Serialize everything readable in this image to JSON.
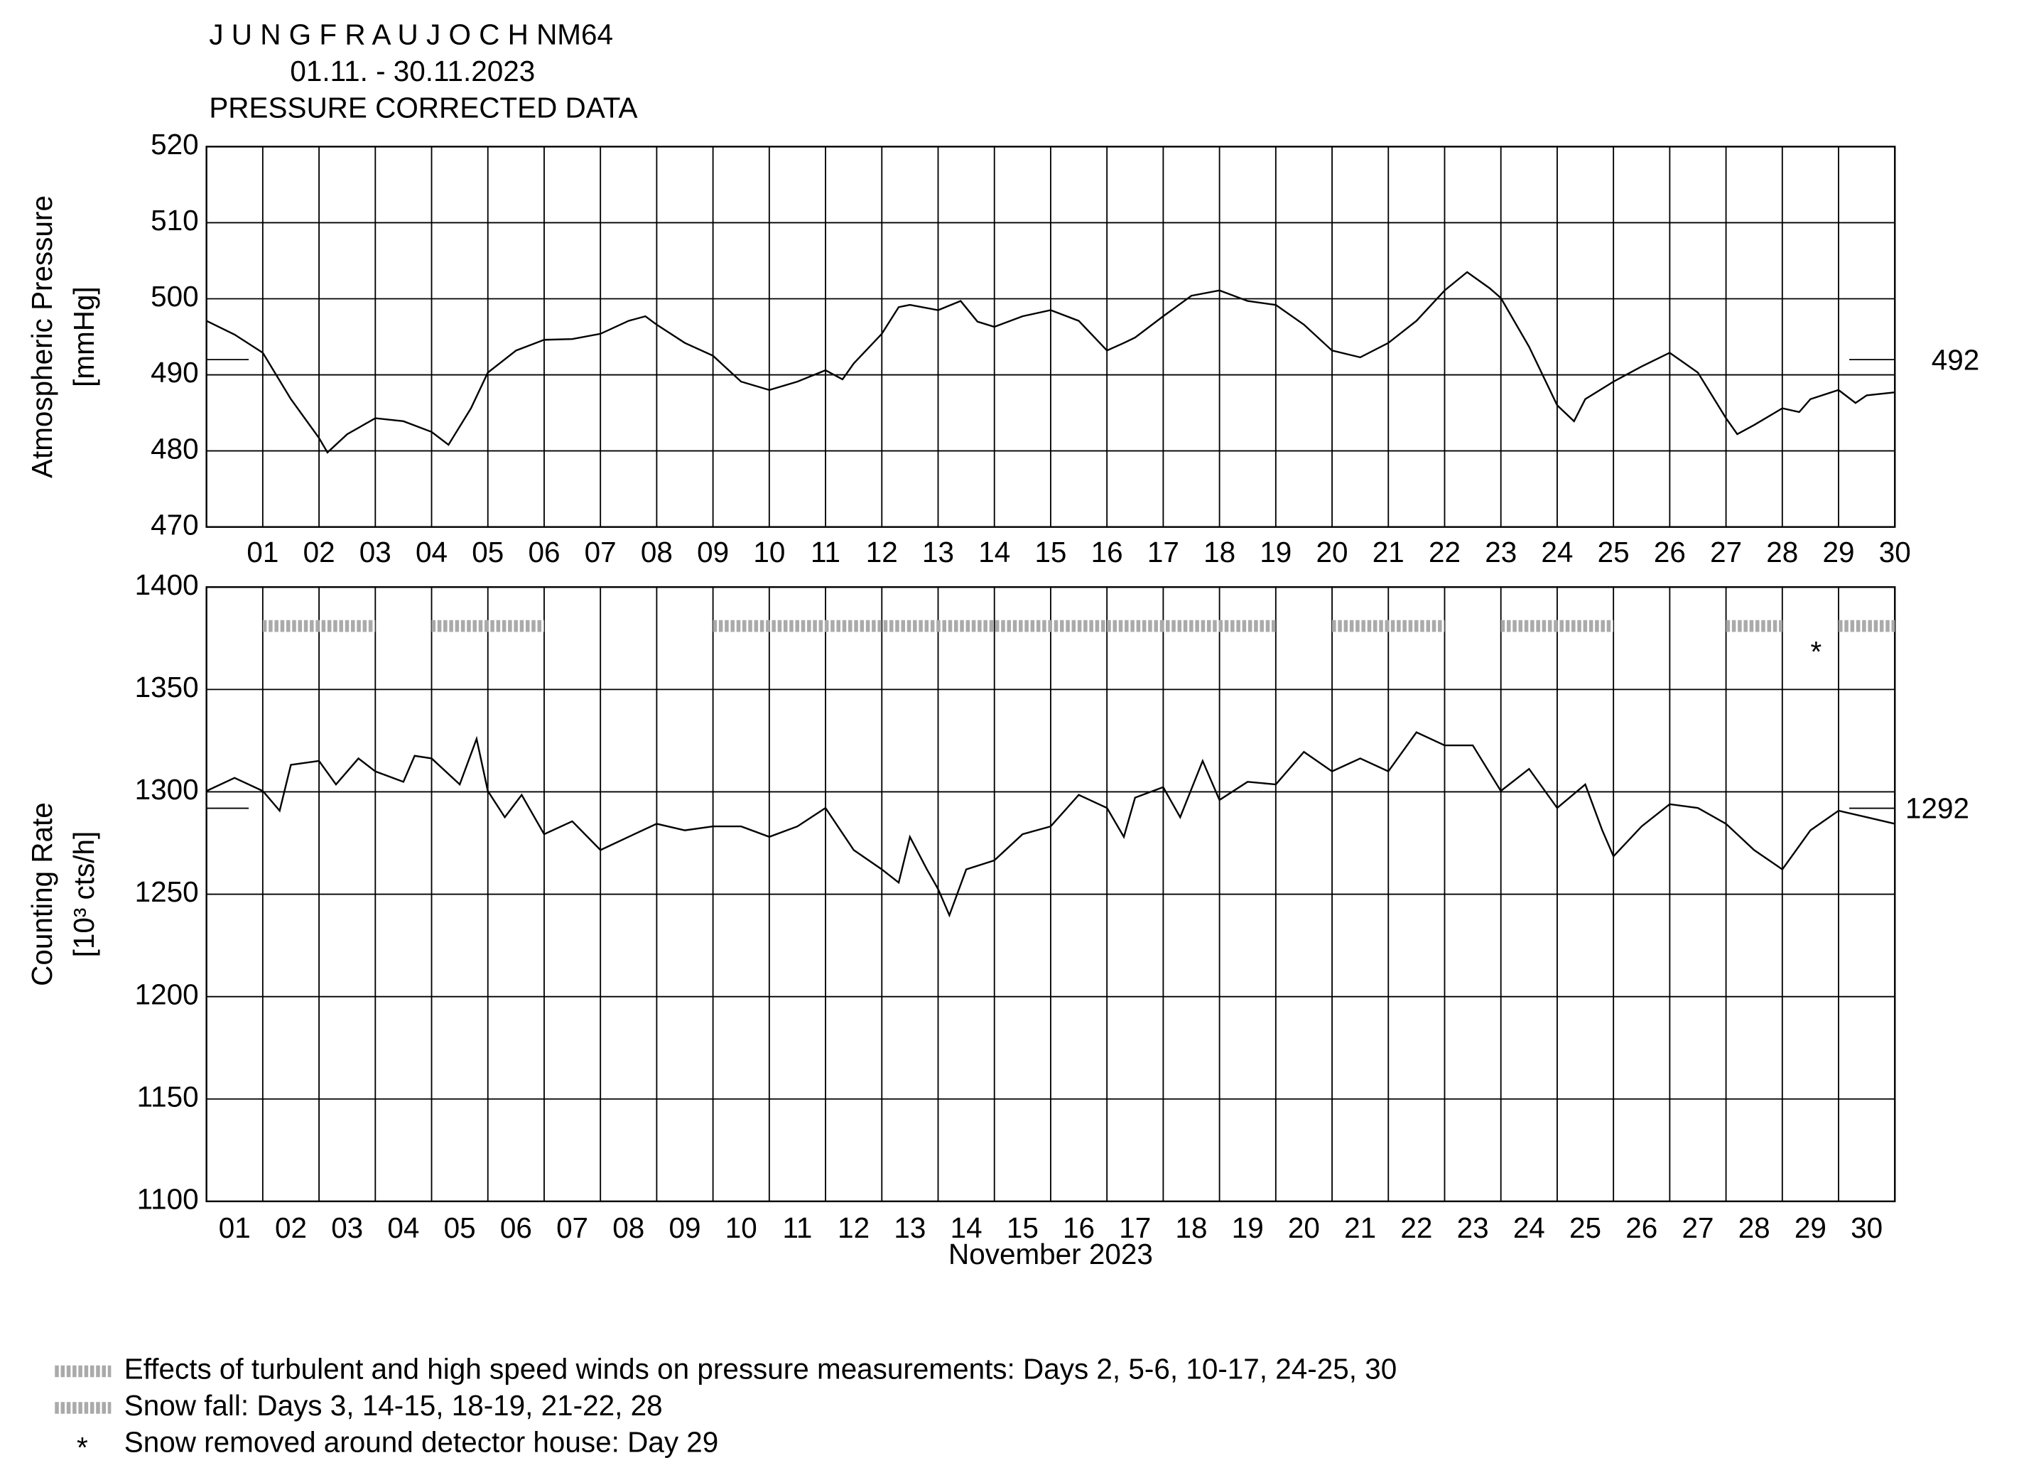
{
  "chart_data": [
    {
      "type": "line",
      "title": [
        "J U N G F R A U J O C H  NM64",
        "01.11. - 30.11.2023",
        "PRESSURE CORRECTED DATA"
      ],
      "ylabel": [
        "Atmospheric Pressure",
        "[mmHg]"
      ],
      "xlim": [
        0,
        30
      ],
      "ylim": [
        470,
        520
      ],
      "yticks": [
        470,
        480,
        490,
        500,
        510,
        520
      ],
      "xticks": [
        {
          "value": 1,
          "label": "01"
        },
        {
          "value": 2,
          "label": "02"
        },
        {
          "value": 3,
          "label": "03"
        },
        {
          "value": 4,
          "label": "04"
        },
        {
          "value": 5,
          "label": "05"
        },
        {
          "value": 6,
          "label": "06"
        },
        {
          "value": 7,
          "label": "07"
        },
        {
          "value": 8,
          "label": "08"
        },
        {
          "value": 9,
          "label": "09"
        },
        10,
        11,
        12,
        13,
        14,
        15,
        16,
        17,
        18,
        19,
        20,
        21,
        22,
        23,
        24,
        25,
        26,
        27,
        28,
        29,
        30
      ],
      "grid": true,
      "reference": 492,
      "color": "#000000",
      "x": [
        0,
        0.5,
        1,
        1.5,
        2,
        2.15,
        2.5,
        3,
        3.5,
        4,
        4.3,
        4.7,
        5,
        5.5,
        6,
        6.5,
        7,
        7.5,
        7.8,
        8,
        8.5,
        9,
        9.5,
        10,
        10.5,
        11,
        11.3,
        11.5,
        12,
        12.3,
        12.5,
        13,
        13.4,
        13.7,
        14,
        14.5,
        15,
        15.5,
        16,
        16.3,
        16.5,
        17,
        17.5,
        18,
        18.5,
        19,
        19.5,
        20,
        20.5,
        21,
        21.5,
        22,
        22.4,
        22.8,
        23,
        23.5,
        24,
        24.3,
        24.5,
        25,
        25.5,
        26,
        26.5,
        27,
        27.2,
        27.5,
        28,
        28.3,
        28.5,
        29,
        29.3,
        29.5,
        30
      ],
      "values": [
        497.1,
        495.3,
        492.9,
        486.8,
        481.7,
        479.8,
        482.2,
        484.3,
        483.9,
        482.5,
        480.8,
        485.6,
        490.3,
        493.2,
        494.6,
        494.7,
        495.4,
        497.1,
        497.7,
        496.6,
        494.2,
        492.5,
        489.1,
        488.0,
        489.1,
        490.6,
        489.4,
        491.5,
        495.4,
        498.9,
        499.2,
        498.5,
        499.7,
        497.0,
        496.3,
        497.7,
        498.5,
        497.1,
        493.2,
        494.2,
        494.9,
        497.7,
        500.4,
        501.1,
        499.7,
        499.2,
        496.6,
        493.2,
        492.3,
        494.2,
        497.1,
        501.1,
        503.5,
        501.4,
        500.1,
        493.7,
        486.0,
        483.9,
        486.8,
        489.1,
        491.1,
        492.9,
        490.3,
        484.3,
        482.2,
        483.4,
        485.6,
        485.1,
        486.8,
        488.0,
        486.3,
        487.3,
        487.7
      ]
    },
    {
      "type": "line",
      "ylabel": [
        "Counting Rate",
        "[10³ cts/h]"
      ],
      "xlabel": "November 2023",
      "xlim": [
        0,
        30
      ],
      "ylim": [
        1100,
        1400
      ],
      "yticks": [
        1100,
        1150,
        1200,
        1250,
        1300,
        1350,
        1400
      ],
      "xticks": [
        {
          "value": 0.5,
          "label": "01"
        },
        {
          "value": 1.5,
          "label": "02"
        },
        {
          "value": 2.5,
          "label": "03"
        },
        {
          "value": 3.5,
          "label": "04"
        },
        {
          "value": 4.5,
          "label": "05"
        },
        {
          "value": 5.5,
          "label": "06"
        },
        {
          "value": 6.5,
          "label": "07"
        },
        {
          "value": 7.5,
          "label": "08"
        },
        {
          "value": 8.5,
          "label": "09"
        },
        {
          "value": 9.5,
          "label": "10"
        },
        {
          "value": 10.5,
          "label": "11"
        },
        {
          "value": 11.5,
          "label": "12"
        },
        {
          "value": 12.5,
          "label": "13"
        },
        {
          "value": 13.5,
          "label": "14"
        },
        {
          "value": 14.5,
          "label": "15"
        },
        {
          "value": 15.5,
          "label": "16"
        },
        {
          "value": 16.5,
          "label": "17"
        },
        {
          "value": 17.5,
          "label": "18"
        },
        {
          "value": 18.5,
          "label": "19"
        },
        {
          "value": 19.5,
          "label": "20"
        },
        {
          "value": 20.5,
          "label": "21"
        },
        {
          "value": 21.5,
          "label": "22"
        },
        {
          "value": 22.5,
          "label": "23"
        },
        {
          "value": 23.5,
          "label": "24"
        },
        {
          "value": 24.5,
          "label": "25"
        },
        {
          "value": 25.5,
          "label": "26"
        },
        {
          "value": 26.5,
          "label": "27"
        },
        {
          "value": 27.5,
          "label": "28"
        },
        {
          "value": 28.5,
          "label": "29"
        },
        {
          "value": 29.5,
          "label": "30"
        }
      ],
      "grid": true,
      "reference": 1292,
      "color": "#000000",
      "bands": [
        [
          1,
          3
        ],
        [
          4,
          6
        ],
        [
          9,
          19
        ],
        [
          20,
          22
        ],
        [
          23,
          25
        ],
        [
          27,
          28
        ],
        [
          29,
          30
        ]
      ],
      "band_level": 1381,
      "star": [
        28.6,
        1370
      ],
      "x": [
        0,
        0.5,
        1,
        1.3,
        1.5,
        2,
        2.3,
        2.7,
        3,
        3.5,
        3.7,
        4,
        4.5,
        4.8,
        5,
        5.3,
        5.6,
        6,
        6.5,
        7,
        7.5,
        8,
        8.5,
        9,
        9.5,
        10,
        10.5,
        11,
        11.5,
        12,
        12.3,
        12.5,
        12.8,
        13,
        13.2,
        13.5,
        14,
        14.5,
        15,
        15.5,
        16,
        16.3,
        16.5,
        17,
        17.3,
        17.7,
        18,
        18.5,
        19,
        19.5,
        20,
        20.5,
        21,
        21.5,
        22,
        22.5,
        23,
        23.5,
        24,
        24.5,
        24.8,
        25,
        25.5,
        26,
        26.5,
        27,
        27.5,
        28,
        28.5,
        29,
        29.5,
        30
      ],
      "values": [
        1300.4,
        1306.8,
        1300.4,
        1290.8,
        1313.2,
        1315.1,
        1303.6,
        1316.3,
        1310.0,
        1304.9,
        1317.6,
        1316.3,
        1303.6,
        1325.9,
        1300.4,
        1287.6,
        1298.5,
        1279.3,
        1285.6,
        1271.6,
        1278.0,
        1284.4,
        1281.2,
        1283.1,
        1283.1,
        1278.0,
        1283.1,
        1292.1,
        1271.6,
        1262.1,
        1255.7,
        1278.0,
        1262.1,
        1252.5,
        1239.7,
        1262.1,
        1266.5,
        1279.3,
        1283.1,
        1298.5,
        1292.1,
        1278.0,
        1297.2,
        1302.3,
        1287.6,
        1315.1,
        1296.0,
        1304.9,
        1303.6,
        1319.5,
        1310.0,
        1316.3,
        1310.0,
        1329.1,
        1322.7,
        1322.7,
        1300.4,
        1311.2,
        1292.1,
        1303.6,
        1281.2,
        1268.5,
        1283.1,
        1294.0,
        1292.1,
        1284.4,
        1271.6,
        1262.1,
        1281.2,
        1290.8,
        1287.6,
        1284.4
      ]
    }
  ],
  "legend": {
    "items": [
      {
        "symbol": null,
        "text": "Effects of turbulent and high speed winds on pressure measurements: Days 2, 5-6, 10-17, 24-25, 30"
      },
      {
        "symbol": null,
        "text": "Snow fall: Days 3, 14-15, 18-19, 21-22, 28"
      },
      {
        "symbol": "*",
        "text": "Snow removed around detector house: Day 29"
      }
    ]
  }
}
